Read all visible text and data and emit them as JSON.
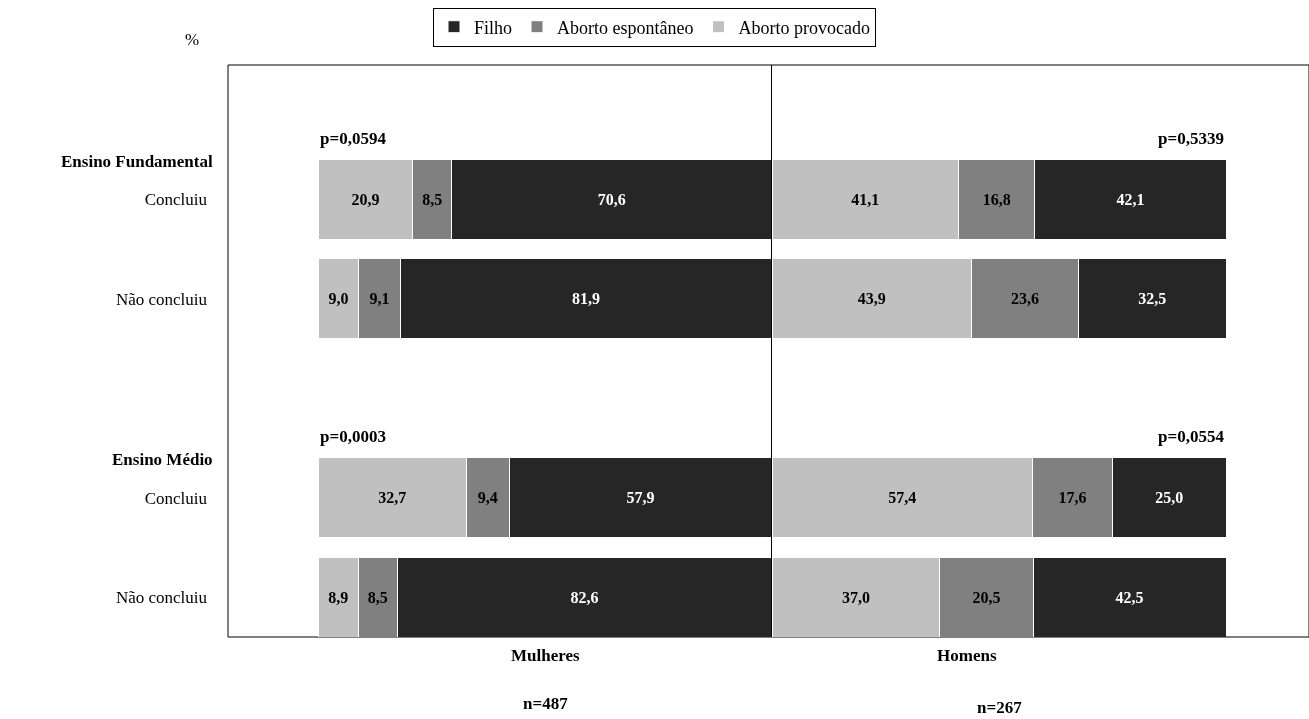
{
  "chart_data": [
    {
      "type": "bar",
      "orientation": "horizontal",
      "stacked": true,
      "xlim": [
        0,
        100
      ],
      "tick_labels": "y",
      "legend": "top",
      "grid": false,
      "categories": [
        "Concluiu",
        "Não concluiu",
        null,
        "Concluiu",
        "Não concluiu"
      ],
      "series": [
        {
          "name": "Aborto provocado",
          "color": "#c0c0c0",
          "values": [
            20.9,
            9.0,
            null,
            32.7,
            8.9
          ],
          "value_labels": [
            "20,9",
            "9,0",
            null,
            "32,7",
            "8,9"
          ]
        },
        {
          "name": "Aborto espontâneo",
          "color": "#808080",
          "values": [
            8.5,
            9.1,
            null,
            9.4,
            8.5
          ],
          "value_labels": [
            "8,5",
            "9,1",
            null,
            "9,4",
            "8,5"
          ]
        },
        {
          "name": "Filho",
          "color": "#262626",
          "values": [
            70.6,
            81.9,
            null,
            57.9,
            82.6
          ],
          "value_labels": [
            "70,6",
            "81,9",
            null,
            "57,9",
            "82,6"
          ]
        }
      ],
      "xlabel": "Mulheres",
      "annotations": [
        "%",
        "Ensino Fundamental",
        "Ensino Médio",
        "p=0,0594",
        "p=0,0003",
        "n=487"
      ]
    },
    {
      "type": "bar",
      "orientation": "horizontal",
      "stacked": true,
      "xlim": [
        0,
        100
      ],
      "tick_labels": false,
      "grid": false,
      "series": [
        {
          "color": "#c0c0c0",
          "values": [
            41.1,
            43.9,
            null,
            57.4,
            37.0
          ],
          "value_labels": [
            "41,1",
            "43,9",
            null,
            "57,4",
            "37,0"
          ]
        },
        {
          "color": "#808080",
          "values": [
            16.8,
            23.6,
            null,
            17.6,
            20.5
          ],
          "value_labels": [
            "16,8",
            "23,6",
            null,
            "17,6",
            "20,5"
          ]
        },
        {
          "color": "#262626",
          "values": [
            42.1,
            32.5,
            null,
            25.0,
            42.5
          ],
          "value_labels": [
            "42,1",
            "32,5",
            null,
            "25,0",
            "42,5"
          ]
        }
      ],
      "xlabel": "Homens",
      "annotations": [
        "p=0,5339",
        "p=0,0554",
        "n=267"
      ]
    }
  ]
}
